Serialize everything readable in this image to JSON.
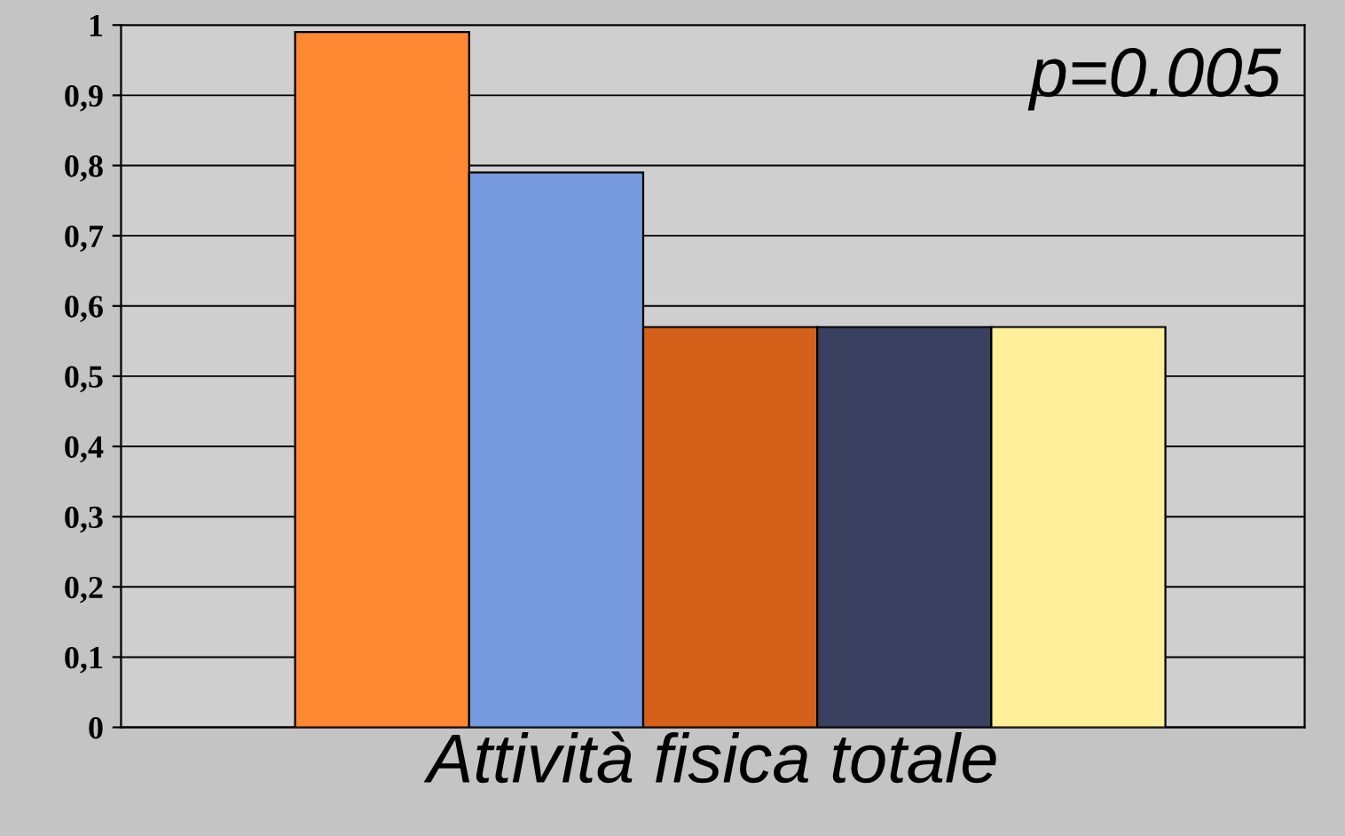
{
  "chart_data": {
    "type": "bar",
    "xlabel": "Attività fisica totale",
    "annotations": [
      "p=0.005"
    ],
    "categories": [
      null,
      null,
      null,
      null,
      null
    ],
    "values": [
      0.99,
      0.79,
      0.57,
      0.57,
      0.57
    ],
    "colors": [
      "#ff8833",
      "#7799dd",
      "#d4601a",
      "#3a4060",
      "#fff099"
    ],
    "ylim": [
      0,
      1
    ],
    "yticks": [
      0,
      {
        "value": 0.1,
        "label": "0,1"
      },
      {
        "value": 0.2,
        "label": "0,2"
      },
      {
        "value": 0.3,
        "label": "0,3"
      },
      {
        "value": 0.4,
        "label": "0,4"
      },
      {
        "value": 0.5,
        "label": "0,5"
      },
      {
        "value": 0.6,
        "label": "0,6"
      },
      {
        "value": 0.7,
        "label": "0,7"
      },
      {
        "value": 0.8,
        "label": "0,8"
      },
      {
        "value": 0.9,
        "label": "0,9"
      },
      1
    ],
    "grid": "y",
    "tick_labels": "y"
  }
}
